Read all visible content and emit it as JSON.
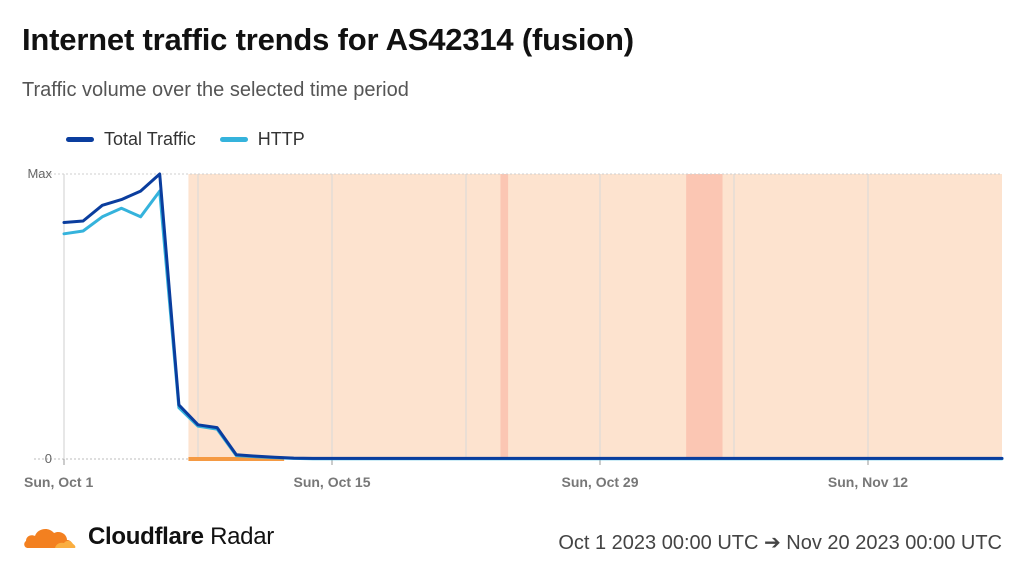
{
  "header": {
    "title": "Internet traffic trends for AS42314 (fusion)",
    "subtitle": "Traffic volume over the selected time period"
  },
  "footer": {
    "brand_bold": "Cloudflare",
    "brand_light": "Radar",
    "date_range": "Oct 1 2023 00:00 UTC ➔ Nov 20 2023 00:00 UTC"
  },
  "colors": {
    "total": "#0a3d9e",
    "http": "#35b3dc",
    "outage": "#fde3cf",
    "outage_strong": "#fbc6b3",
    "outage_marker": "#f59a43",
    "grid": "#e3e3e3"
  },
  "chart_data": {
    "type": "line",
    "x_unit": "days since Oct 1 2023",
    "xlim": [
      0,
      49
    ],
    "ylim": [
      0,
      1
    ],
    "y_tick_labels": [
      "0",
      "Max"
    ],
    "x_ticks": [
      {
        "x": 0,
        "label": "Sun, Oct 1"
      },
      {
        "x": 14,
        "label": "Sun, Oct 15"
      },
      {
        "x": 28,
        "label": "Sun, Oct 29"
      },
      {
        "x": 42,
        "label": "Sun, Nov 12"
      }
    ],
    "series": [
      {
        "name": "Total Traffic",
        "x": [
          0,
          1,
          2,
          3,
          4,
          5,
          6,
          7,
          8,
          9,
          10,
          11,
          12,
          13,
          14,
          20,
          30,
          40,
          49
        ],
        "values": [
          0.83,
          0.835,
          0.89,
          0.91,
          0.94,
          1.0,
          0.19,
          0.12,
          0.11,
          0.015,
          0.01,
          0.006,
          0.003,
          0.002,
          0.002,
          0.002,
          0.002,
          0.002,
          0.002
        ]
      },
      {
        "name": "HTTP",
        "x": [
          0,
          1,
          2,
          3,
          4,
          5,
          6,
          7,
          8,
          9,
          10,
          11,
          12,
          13,
          14,
          20,
          30,
          40,
          49
        ],
        "values": [
          0.79,
          0.8,
          0.85,
          0.88,
          0.85,
          0.94,
          0.18,
          0.115,
          0.105,
          0.012,
          0.008,
          0.005,
          0.002,
          0.001,
          0.001,
          0.001,
          0.001,
          0.001,
          0.001
        ]
      }
    ],
    "outage_regions": [
      {
        "start": 6.5,
        "end": 49,
        "level": "normal"
      },
      {
        "start": 22.8,
        "end": 23.2,
        "level": "strong"
      },
      {
        "start": 32.5,
        "end": 34.4,
        "level": "strong"
      }
    ],
    "outage_marker": {
      "start": 6.5,
      "end": 11.5
    },
    "grid": true,
    "legend_position": "top-left"
  }
}
